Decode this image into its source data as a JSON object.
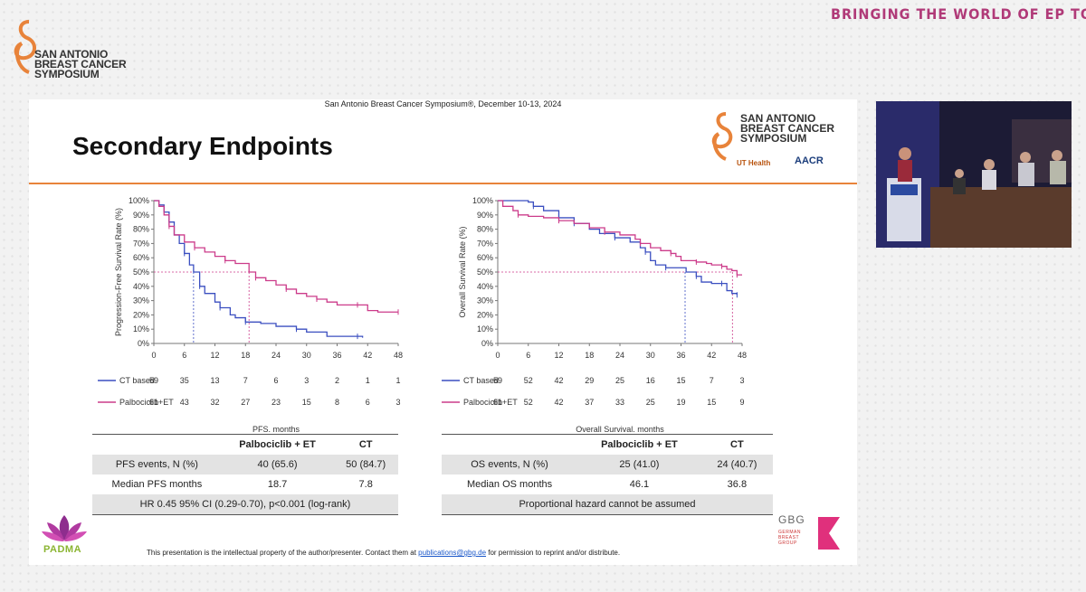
{
  "banner": "BRINGING THE WORLD OF EP TOGETHER",
  "logo_text": [
    "SAN ANTONIO",
    "BREAST CANCER",
    "SYMPOSIUM"
  ],
  "slide": {
    "header": "San Antonio Breast Cancer Symposium®, December 10-13, 2024",
    "title": "Secondary Endpoints",
    "partner_logos": [
      "UT Health",
      "AACR"
    ]
  },
  "chart_data": [
    {
      "type": "line",
      "ylabel": "Progression-Free Survival Rate (%)",
      "xlabel": "PFS, months",
      "x_ticks": [
        0,
        6,
        12,
        18,
        24,
        30,
        36,
        42,
        48
      ],
      "y_ticks": [
        "0%",
        "10%",
        "20%",
        "30%",
        "40%",
        "50%",
        "60%",
        "70%",
        "80%",
        "90%",
        "100%"
      ],
      "xlim": [
        0,
        48
      ],
      "ylim": [
        0,
        100
      ],
      "series": [
        {
          "name": "CT based",
          "color": "#3b4fc0",
          "points": [
            [
              0,
              100
            ],
            [
              1,
              97
            ],
            [
              2,
              92
            ],
            [
              3,
              85
            ],
            [
              4,
              76
            ],
            [
              5,
              70
            ],
            [
              6,
              63
            ],
            [
              7,
              55
            ],
            [
              7.8,
              50
            ],
            [
              9,
              40
            ],
            [
              10,
              35
            ],
            [
              12,
              29
            ],
            [
              13,
              25
            ],
            [
              15,
              20
            ],
            [
              16,
              18
            ],
            [
              18,
              15
            ],
            [
              21,
              14
            ],
            [
              24,
              12
            ],
            [
              28,
              10
            ],
            [
              30,
              8
            ],
            [
              34,
              5
            ],
            [
              40,
              5
            ],
            [
              41,
              4
            ]
          ],
          "at_risk": [
            59,
            35,
            13,
            7,
            6,
            3,
            2,
            1,
            1
          ]
        },
        {
          "name": "Palbociclib+ET",
          "color": "#cc3b8a",
          "points": [
            [
              0,
              100
            ],
            [
              1,
              96
            ],
            [
              2,
              90
            ],
            [
              3,
              82
            ],
            [
              4,
              76
            ],
            [
              6,
              71
            ],
            [
              8,
              67
            ],
            [
              10,
              64
            ],
            [
              12,
              61
            ],
            [
              14,
              58
            ],
            [
              16,
              56
            ],
            [
              18.7,
              50
            ],
            [
              20,
              46
            ],
            [
              22,
              44
            ],
            [
              24,
              41
            ],
            [
              26,
              38
            ],
            [
              28,
              35
            ],
            [
              30,
              33
            ],
            [
              32,
              31
            ],
            [
              34,
              29
            ],
            [
              36,
              27
            ],
            [
              40,
              27
            ],
            [
              42,
              23
            ],
            [
              44,
              22
            ],
            [
              48,
              22
            ]
          ],
          "at_risk": [
            61,
            43,
            32,
            27,
            23,
            15,
            8,
            6,
            3
          ]
        }
      ],
      "medians": [
        7.8,
        18.7
      ]
    },
    {
      "type": "line",
      "ylabel": "Overall Survival Rate (%)",
      "xlabel": "Overall Survival, months",
      "x_ticks": [
        0,
        6,
        12,
        18,
        24,
        30,
        36,
        42,
        48
      ],
      "y_ticks": [
        "0%",
        "10%",
        "20%",
        "30%",
        "40%",
        "50%",
        "60%",
        "70%",
        "80%",
        "90%",
        "100%"
      ],
      "xlim": [
        0,
        48
      ],
      "ylim": [
        0,
        100
      ],
      "series": [
        {
          "name": "CT based",
          "color": "#3b4fc0",
          "points": [
            [
              0,
              100
            ],
            [
              3,
              100
            ],
            [
              6,
              99
            ],
            [
              7,
              96
            ],
            [
              9,
              93
            ],
            [
              12,
              88
            ],
            [
              15,
              84
            ],
            [
              18,
              80
            ],
            [
              20,
              77
            ],
            [
              23,
              74
            ],
            [
              26,
              71
            ],
            [
              28,
              67
            ],
            [
              29,
              64
            ],
            [
              30,
              58
            ],
            [
              31,
              55
            ],
            [
              33,
              53
            ],
            [
              36,
              53
            ],
            [
              37,
              50
            ],
            [
              39,
              47
            ],
            [
              40,
              43
            ],
            [
              42,
              42
            ],
            [
              44,
              42
            ],
            [
              45,
              37
            ],
            [
              46,
              35
            ],
            [
              47,
              34
            ]
          ],
          "at_risk": [
            59,
            52,
            42,
            29,
            25,
            16,
            15,
            7,
            3
          ]
        },
        {
          "name": "Palbociclib+ET",
          "color": "#cc3b8a",
          "points": [
            [
              0,
              100
            ],
            [
              1,
              96
            ],
            [
              3,
              93
            ],
            [
              4,
              90
            ],
            [
              6,
              89
            ],
            [
              9,
              88
            ],
            [
              12,
              86
            ],
            [
              15,
              84
            ],
            [
              18,
              81
            ],
            [
              21,
              78
            ],
            [
              24,
              76
            ],
            [
              27,
              73
            ],
            [
              28,
              70
            ],
            [
              30,
              67
            ],
            [
              32,
              65
            ],
            [
              34,
              63
            ],
            [
              35,
              61
            ],
            [
              36,
              58
            ],
            [
              39,
              57
            ],
            [
              41,
              56
            ],
            [
              42,
              55
            ],
            [
              44,
              54
            ],
            [
              45,
              52
            ],
            [
              46,
              51
            ],
            [
              47,
              48
            ],
            [
              48,
              48
            ]
          ],
          "at_risk": [
            61,
            52,
            42,
            37,
            33,
            25,
            19,
            15,
            9
          ]
        }
      ],
      "medians": [
        36.8,
        46.1
      ]
    }
  ],
  "pfs_table": {
    "headers": [
      "",
      "Palbociclib + ET",
      "CT"
    ],
    "rows": [
      [
        "PFS events, N (%)",
        "40 (65.6)",
        "50 (84.7)"
      ],
      [
        "Median PFS months",
        "18.7",
        "7.8"
      ]
    ],
    "footer": "HR 0.45 95% CI (0.29-0.70), p<0.001 (log-rank)"
  },
  "os_table": {
    "headers": [
      "",
      "Palbociclib + ET",
      "CT"
    ],
    "rows": [
      [
        "OS events, N (%)",
        "25 (41.0)",
        "24 (40.7)"
      ],
      [
        "Median OS months",
        "46.1",
        "36.8"
      ]
    ],
    "footer": "Proportional hazard cannot be assumed"
  },
  "footer": {
    "before": "This presentation is the intellectual property of the author/presenter. Contact them at ",
    "link": "publications@gbg.de",
    "after": " for permission to reprint and/or distribute."
  },
  "padma_text": "PADMA",
  "gbg": {
    "name": "GBG",
    "sub": [
      "GERMAN",
      "BREAST",
      "GROUP"
    ]
  },
  "colors": {
    "accent_orange": "#e8833a",
    "ct": "#3b4fc0",
    "palbo": "#cc3b8a",
    "banner": "#b03a78"
  }
}
